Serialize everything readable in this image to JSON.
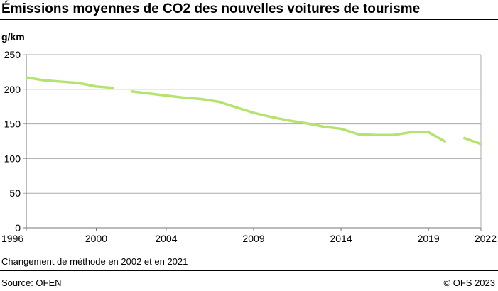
{
  "chart_data": {
    "type": "line",
    "title": "Émissions moyennes de CO2 des nouvelles voitures de tourisme",
    "ylabel": "g/km",
    "xlabel": "",
    "xlim": [
      1996,
      2022
    ],
    "ylim": [
      0,
      250
    ],
    "x_ticks": [
      1996,
      2000,
      2004,
      2009,
      2014,
      2019,
      2022
    ],
    "y_ticks": [
      0,
      50,
      100,
      150,
      200,
      250
    ],
    "grid": true,
    "color": "#b5e36f",
    "segments": [
      {
        "x": [
          1996,
          1997,
          1998,
          1999,
          2000,
          2001
        ],
        "y": [
          217,
          213,
          211,
          209,
          204,
          202
        ]
      },
      {
        "x": [
          2002,
          2003,
          2004,
          2005,
          2006,
          2007,
          2008,
          2009,
          2010,
          2011,
          2012,
          2013,
          2014,
          2015,
          2016,
          2017,
          2018,
          2019,
          2020
        ],
        "y": [
          197,
          194,
          191,
          188,
          186,
          182,
          174,
          166,
          160,
          155,
          151,
          146,
          143,
          135,
          134,
          134,
          138,
          138,
          124
        ]
      },
      {
        "x": [
          2021,
          2022
        ],
        "y": [
          130,
          121
        ]
      }
    ]
  },
  "note": "Changement de méthode en 2002 et en 2021",
  "source": "Source: OFEN",
  "copyright": "© OFS 2023"
}
